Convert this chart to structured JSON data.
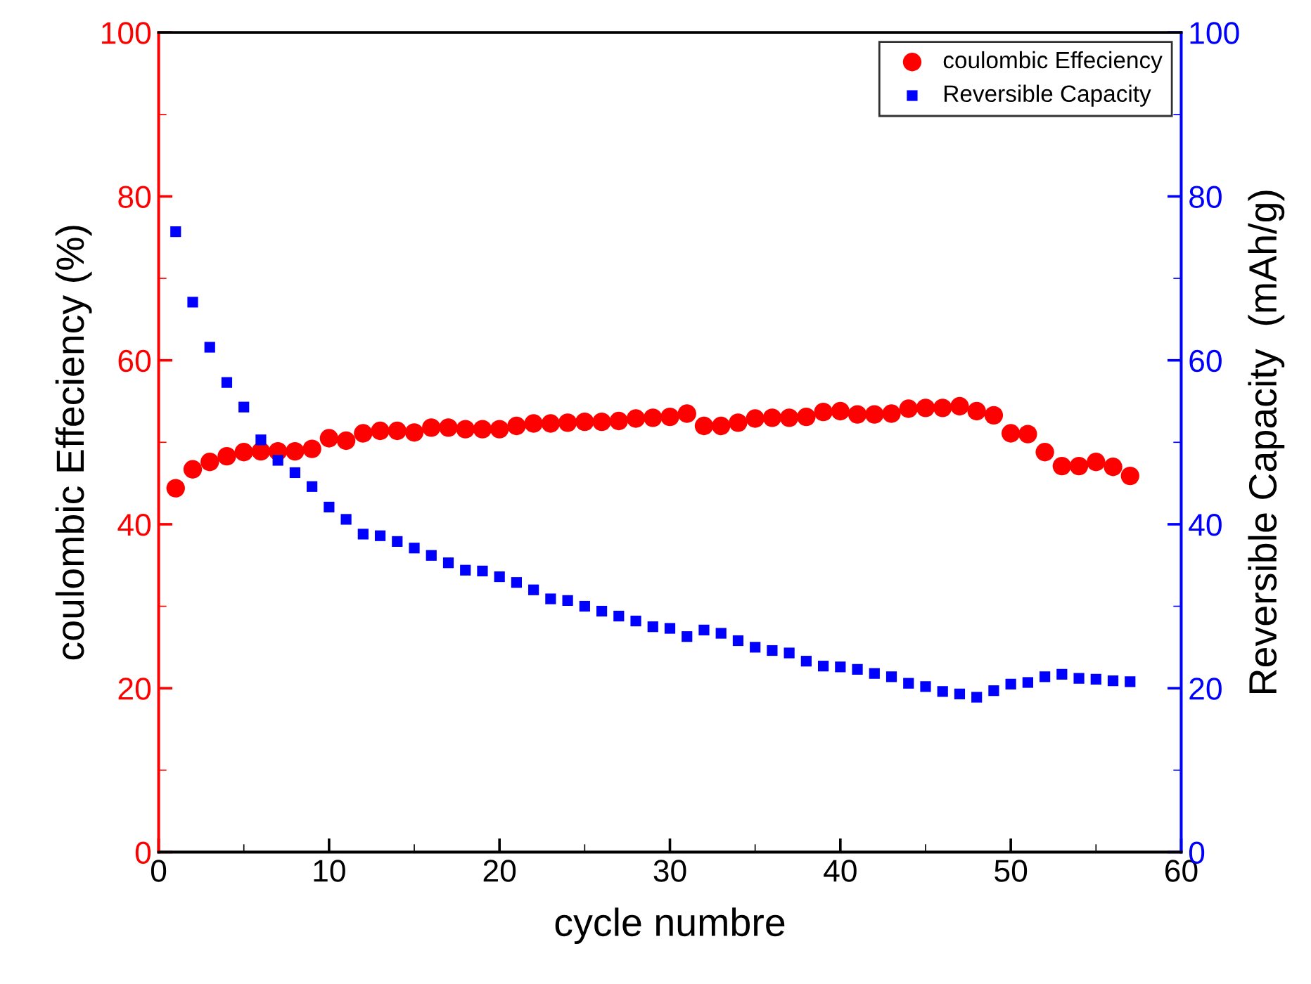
{
  "chart_data": {
    "type": "scatter",
    "xlabel": "cycle numbre",
    "ylabel": "coulombic Effeciency (%)",
    "y2label": "Reversible Capacity  (mAh/g)",
    "x": [
      1,
      2,
      3,
      4,
      5,
      6,
      7,
      8,
      9,
      10,
      11,
      12,
      13,
      14,
      15,
      16,
      17,
      18,
      19,
      20,
      21,
      22,
      23,
      24,
      25,
      26,
      27,
      28,
      29,
      30,
      31,
      32,
      33,
      34,
      35,
      36,
      37,
      38,
      39,
      40,
      41,
      42,
      43,
      44,
      45,
      46,
      47,
      48,
      49,
      50,
      51,
      52,
      53,
      54,
      55,
      56,
      57
    ],
    "series": [
      {
        "name": "coulombic Effeciency",
        "color": "#ff0000",
        "marker": "circle",
        "values": [
          44.4,
          46.7,
          47.6,
          48.3,
          48.8,
          48.9,
          48.9,
          48.9,
          49.2,
          50.5,
          50.2,
          51.1,
          51.4,
          51.4,
          51.2,
          51.8,
          51.8,
          51.6,
          51.6,
          51.6,
          52.0,
          52.3,
          52.3,
          52.4,
          52.5,
          52.5,
          52.6,
          52.9,
          53.0,
          53.1,
          53.5,
          52.0,
          52.0,
          52.4,
          52.9,
          53.0,
          53.0,
          53.1,
          53.7,
          53.8,
          53.4,
          53.4,
          53.5,
          54.1,
          54.2,
          54.2,
          54.4,
          53.8,
          53.3,
          51.1,
          51.0,
          48.8,
          47.1,
          47.1,
          47.6,
          47.0,
          45.9
        ]
      },
      {
        "name": "Reversible Capacity",
        "color": "#0000ff",
        "marker": "square",
        "axis": "y2",
        "values": [
          75.7,
          67.1,
          61.6,
          57.3,
          54.3,
          50.3,
          47.8,
          46.3,
          44.6,
          42.1,
          40.6,
          38.8,
          38.6,
          37.9,
          37.1,
          36.2,
          35.3,
          34.4,
          34.3,
          33.6,
          32.9,
          32.0,
          30.9,
          30.7,
          30.0,
          29.4,
          28.8,
          28.2,
          27.5,
          27.3,
          26.3,
          27.1,
          26.7,
          25.8,
          25.0,
          24.6,
          24.3,
          23.3,
          22.7,
          22.6,
          22.3,
          21.8,
          21.4,
          20.6,
          20.2,
          19.6,
          19.3,
          18.9,
          19.7,
          20.5,
          20.7,
          21.4,
          21.7,
          21.2,
          21.1,
          20.9,
          20.8
        ]
      }
    ],
    "xlim": [
      0,
      60
    ],
    "xticks": [
      0,
      10,
      20,
      30,
      40,
      50,
      60
    ],
    "ylim": [
      0,
      100
    ],
    "yticks": [
      0,
      20,
      40,
      60,
      80,
      100
    ],
    "y2lim": [
      0,
      100
    ],
    "y2ticks": [
      0,
      20,
      40,
      60,
      80,
      100
    ],
    "legend": "top right",
    "grid": false
  }
}
